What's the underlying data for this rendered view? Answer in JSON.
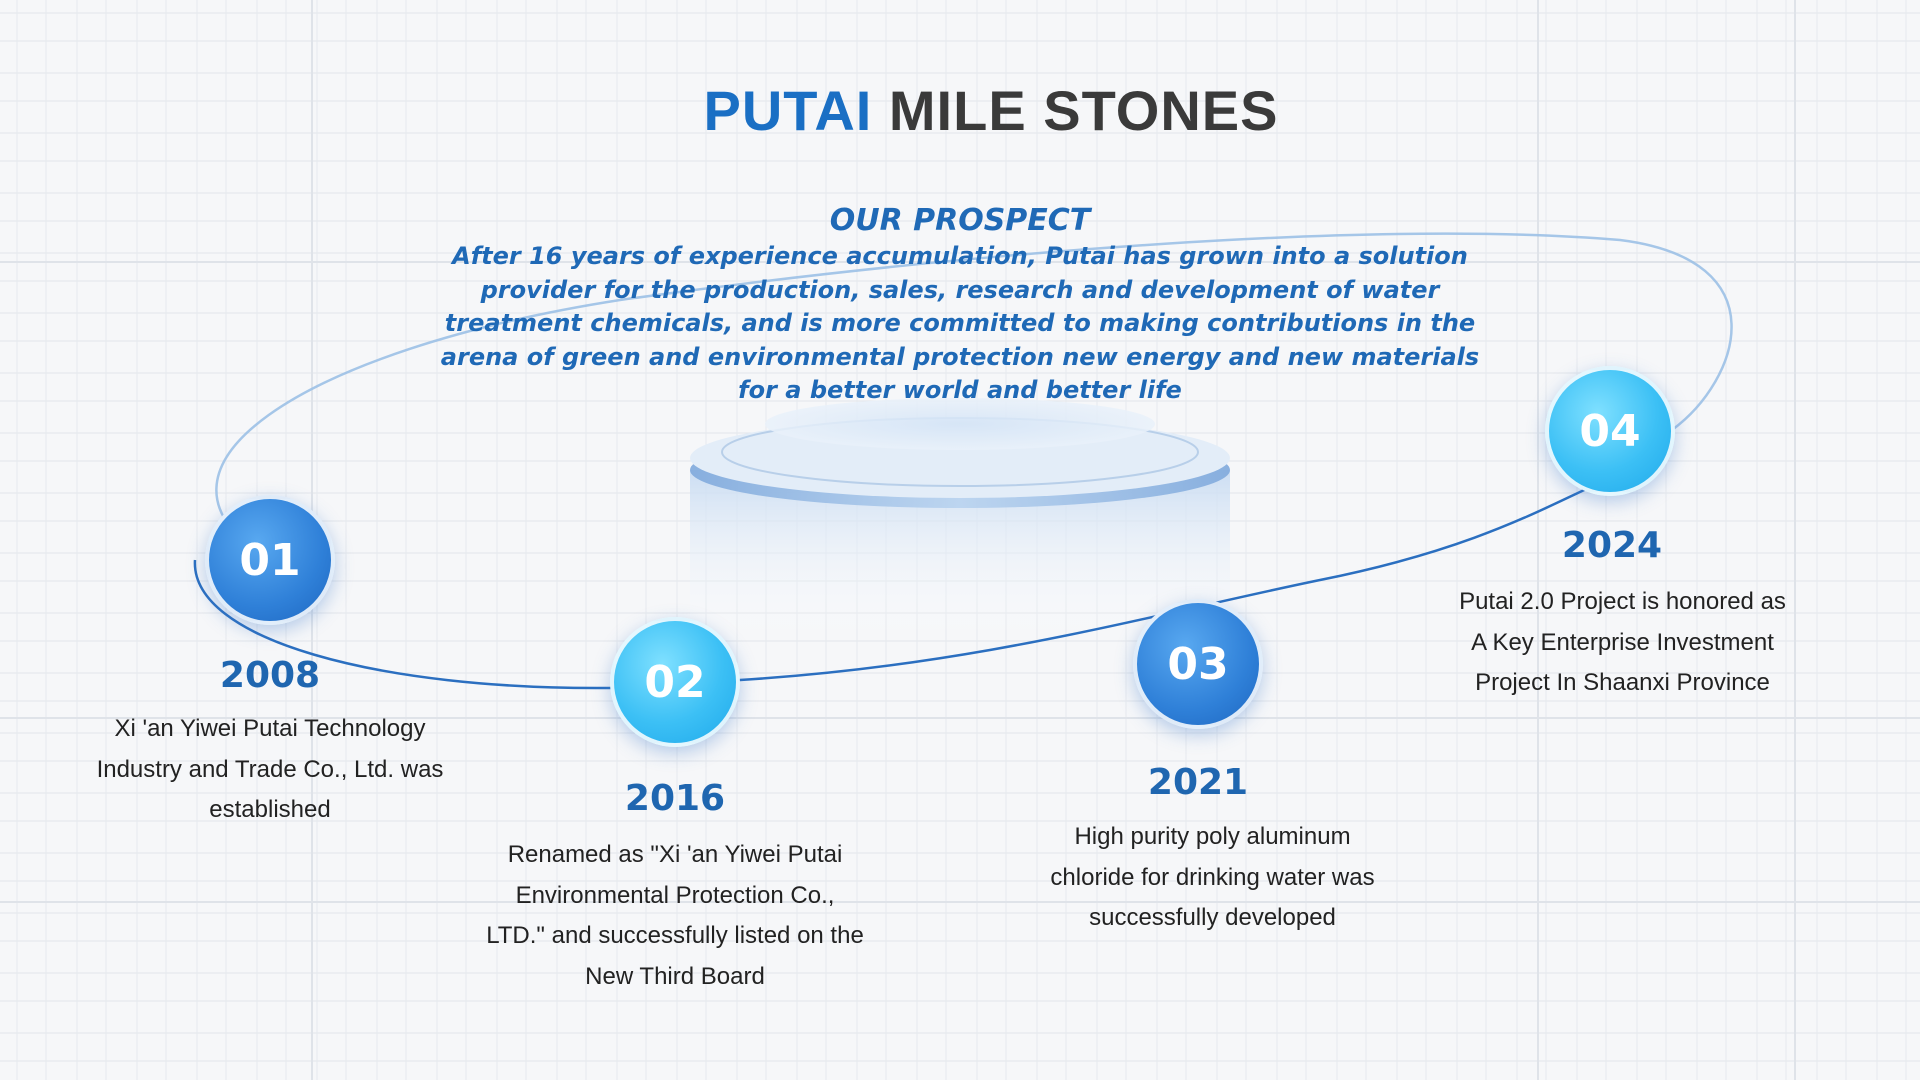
{
  "title": {
    "accent": "PUTAI",
    "rest": "MILE STONES"
  },
  "prospect": {
    "heading": "OUR PROSPECT",
    "body": "After 16 years of experience accumulation, Putai has grown into a solution provider for the production, sales, research and development of water treatment chemicals, and is more committed to making contributions in the arena of green and environmental protection new energy and new materials for a better world and better life"
  },
  "milestones": [
    {
      "number": "01",
      "year": "2008",
      "text": "Xi 'an Yiwei Putai Technology Industry and Trade Co., Ltd. was established"
    },
    {
      "number": "02",
      "year": "2016",
      "text": "Renamed as \"Xi 'an Yiwei Putai Environmental Protection Co., LTD.\" and successfully listed on the New Third Board"
    },
    {
      "number": "03",
      "year": "2021",
      "text": "High purity poly aluminum chloride for drinking water was successfully developed"
    },
    {
      "number": "04",
      "year": "2024",
      "text": "Putai 2.0 Project is honored as A Key Enterprise Investment Project In Shaanxi Province"
    }
  ],
  "colors": {
    "accent": "#1a6fc4",
    "title_dark": "#3a3a3a",
    "year": "#1f66b0",
    "node_blue": "#2f80d8",
    "node_cyan": "#3cc0f5"
  }
}
